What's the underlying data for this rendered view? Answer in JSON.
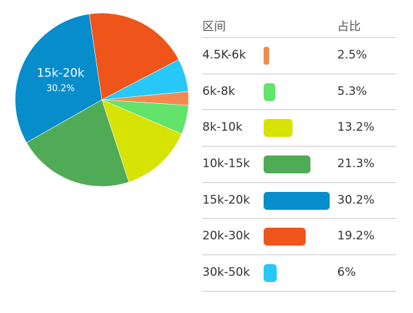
{
  "chart_data": {
    "type": "pie",
    "highlight_index": 4,
    "slices": [
      {
        "label": "4.5K-6k",
        "value": 2.5,
        "display": "2.5%",
        "color": "#f3894f"
      },
      {
        "label": "6k-8k",
        "value": 5.3,
        "display": "5.3%",
        "color": "#62e36c"
      },
      {
        "label": "8k-10k",
        "value": 13.2,
        "display": "13.2%",
        "color": "#d7e205"
      },
      {
        "label": "10k-15k",
        "value": 21.3,
        "display": "21.3%",
        "color": "#50ab56"
      },
      {
        "label": "15k-20k",
        "value": 30.2,
        "display": "30.2%",
        "color": "#078dcb"
      },
      {
        "label": "20k-30k",
        "value": 19.2,
        "display": "19.2%",
        "color": "#ef541a"
      },
      {
        "label": "30k-50k",
        "value": 6,
        "display": "6%",
        "color": "#27c8f8"
      }
    ]
  },
  "table": {
    "header_range": "区间",
    "header_share": "占比",
    "rows": [
      {
        "range": "4.5K-6k",
        "share": "2.5%",
        "bar_fraction": 0.025,
        "color": "#f3894f"
      },
      {
        "range": "6k-8k",
        "share": "5.3%",
        "bar_fraction": 0.053,
        "color": "#62e36c"
      },
      {
        "range": "8k-10k",
        "share": "13.2%",
        "bar_fraction": 0.132,
        "color": "#d7e205"
      },
      {
        "range": "10k-15k",
        "share": "21.3%",
        "bar_fraction": 0.213,
        "color": "#50ab56"
      },
      {
        "range": "15k-20k",
        "share": "30.2%",
        "bar_fraction": 0.302,
        "color": "#078dcb"
      },
      {
        "range": "20k-30k",
        "share": "19.2%",
        "bar_fraction": 0.192,
        "color": "#ef541a"
      },
      {
        "range": "30k-50k",
        "share": "6%",
        "bar_fraction": 0.06,
        "color": "#27c8f8"
      }
    ]
  }
}
